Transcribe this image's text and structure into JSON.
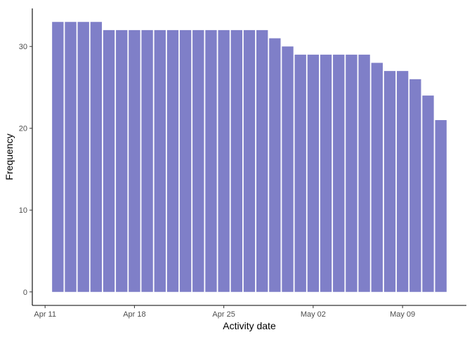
{
  "chart_data": {
    "type": "bar",
    "title": "",
    "xlabel": "Activity date",
    "ylabel": "Frequency",
    "x_type": "date",
    "x": [
      "2021-04-12",
      "2021-04-13",
      "2021-04-14",
      "2021-04-15",
      "2021-04-16",
      "2021-04-17",
      "2021-04-18",
      "2021-04-19",
      "2021-04-20",
      "2021-04-21",
      "2021-04-22",
      "2021-04-23",
      "2021-04-24",
      "2021-04-25",
      "2021-04-26",
      "2021-04-27",
      "2021-04-28",
      "2021-04-29",
      "2021-04-30",
      "2021-05-01",
      "2021-05-02",
      "2021-05-03",
      "2021-05-04",
      "2021-05-05",
      "2021-05-06",
      "2021-05-07",
      "2021-05-08",
      "2021-05-09",
      "2021-05-10",
      "2021-05-11",
      "2021-05-12"
    ],
    "values": [
      33,
      33,
      33,
      33,
      32,
      32,
      32,
      32,
      32,
      32,
      32,
      32,
      32,
      32,
      32,
      32,
      32,
      31,
      30,
      29,
      29,
      29,
      29,
      29,
      29,
      28,
      27,
      27,
      26,
      24,
      21
    ],
    "xlim": [
      "2021-04-10",
      "2021-05-14"
    ],
    "ylim": [
      -1.65,
      34.65
    ],
    "x_ticks": [
      {
        "date": "2021-04-11",
        "label": "Apr 11"
      },
      {
        "date": "2021-04-18",
        "label": "Apr 18"
      },
      {
        "date": "2021-04-25",
        "label": "Apr 25"
      },
      {
        "date": "2021-05-02",
        "label": "May 02"
      },
      {
        "date": "2021-05-09",
        "label": "May 09"
      }
    ],
    "y_ticks": [
      0,
      10,
      20,
      30
    ],
    "bar_color": "#7f7fc8",
    "grid": false,
    "legend": "none"
  }
}
